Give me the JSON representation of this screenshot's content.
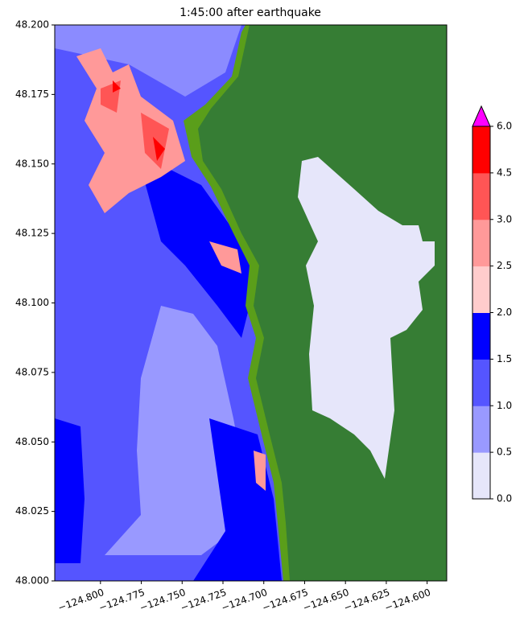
{
  "chart_data": {
    "type": "map",
    "title": "1:45:00 after earthquake",
    "xlim": [
      -124.828,
      -124.588
    ],
    "ylim": [
      48.0,
      48.2
    ],
    "xticks": [
      {
        "value": -124.8,
        "label": "−124.800"
      },
      {
        "value": -124.775,
        "label": "−124.775"
      },
      {
        "value": -124.75,
        "label": "−124.750"
      },
      {
        "value": -124.725,
        "label": "−124.725"
      },
      {
        "value": -124.7,
        "label": "−124.700"
      },
      {
        "value": -124.675,
        "label": "−124.675"
      },
      {
        "value": -124.65,
        "label": "−124.650"
      },
      {
        "value": -124.625,
        "label": "−124.625"
      },
      {
        "value": -124.6,
        "label": "−124.600"
      }
    ],
    "yticks": [
      {
        "value": 48.0,
        "label": "48.000"
      },
      {
        "value": 48.025,
        "label": "48.025"
      },
      {
        "value": 48.05,
        "label": "48.050"
      },
      {
        "value": 48.075,
        "label": "48.075"
      },
      {
        "value": 48.1,
        "label": "48.100"
      },
      {
        "value": 48.125,
        "label": "48.125"
      },
      {
        "value": 48.15,
        "label": "48.150"
      },
      {
        "value": 48.175,
        "label": "48.175"
      },
      {
        "value": 48.2,
        "label": "48.200"
      }
    ],
    "colorbar": {
      "levels": [
        {
          "value": 0,
          "label": "0.0"
        },
        0.5,
        {
          "value": 1,
          "label": "1.0"
        },
        1.5,
        {
          "value": 2,
          "label": "2.0"
        },
        2.5,
        {
          "value": 3,
          "label": "3.0"
        },
        4.5,
        {
          "value": 6,
          "label": "6.0"
        }
      ],
      "colors": [
        "#e6e6fa",
        "#9999ff",
        "#5555ff",
        "#0000ff",
        "#ffcccc",
        "#ff9999",
        "#ff5555",
        "#ff0000"
      ],
      "extend_color": "#ff00ff"
    }
  }
}
